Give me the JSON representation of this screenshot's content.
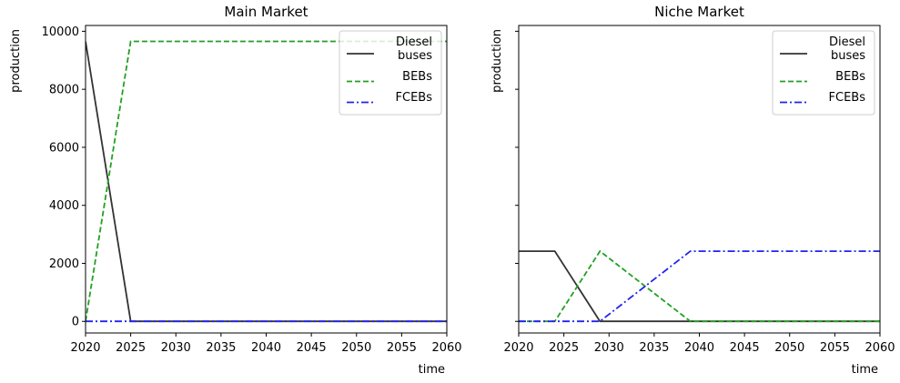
{
  "chart_data": [
    {
      "type": "line",
      "title": "Main Market",
      "xlabel": "time",
      "ylabel": "production",
      "xlim": [
        2020,
        2060
      ],
      "ylim": [
        -400,
        10200
      ],
      "xticks": [
        2020,
        2025,
        2030,
        2035,
        2040,
        2045,
        2050,
        2055,
        2060
      ],
      "yticks": [
        0,
        2000,
        4000,
        6000,
        8000,
        10000
      ],
      "ytick_labels": [
        "0",
        "2000",
        "4000",
        "6000",
        "8000",
        "10000"
      ],
      "legend_position": "top-right",
      "series": [
        {
          "name": "Diesel\n buses",
          "color": "#333333",
          "style": "solid",
          "x": [
            2020,
            2025,
            2060
          ],
          "y": [
            9650,
            0,
            0
          ]
        },
        {
          "name": "BEBs",
          "color": "#22a022",
          "style": "dashed",
          "x": [
            2020,
            2025,
            2060
          ],
          "y": [
            0,
            9650,
            9650
          ]
        },
        {
          "name": "FCEBs",
          "color": "#2222ee",
          "style": "dashdot",
          "x": [
            2020,
            2060
          ],
          "y": [
            0,
            0
          ]
        }
      ]
    },
    {
      "type": "line",
      "title": "Niche Market",
      "xlabel": "time",
      "ylabel": "production",
      "xlim": [
        2020,
        2060
      ],
      "ylim": [
        -400,
        10200
      ],
      "xticks": [
        2020,
        2025,
        2030,
        2035,
        2040,
        2045,
        2050,
        2055,
        2060
      ],
      "yticks": [
        0,
        2000,
        4000,
        6000,
        8000,
        10000
      ],
      "ytick_labels": [
        "",
        "",
        "",
        "",
        "",
        ""
      ],
      "legend_position": "top-right",
      "series": [
        {
          "name": "Diesel\n buses",
          "color": "#333333",
          "style": "solid",
          "x": [
            2020,
            2024,
            2029,
            2060
          ],
          "y": [
            2420,
            2420,
            0,
            0
          ]
        },
        {
          "name": "BEBs",
          "color": "#22a022",
          "style": "dashed",
          "x": [
            2020,
            2024,
            2029,
            2039,
            2060
          ],
          "y": [
            0,
            0,
            2420,
            0,
            0
          ]
        },
        {
          "name": "FCEBs",
          "color": "#2222ee",
          "style": "dashdot",
          "x": [
            2020,
            2029,
            2039,
            2060
          ],
          "y": [
            0,
            0,
            2420,
            2420
          ]
        }
      ]
    }
  ]
}
